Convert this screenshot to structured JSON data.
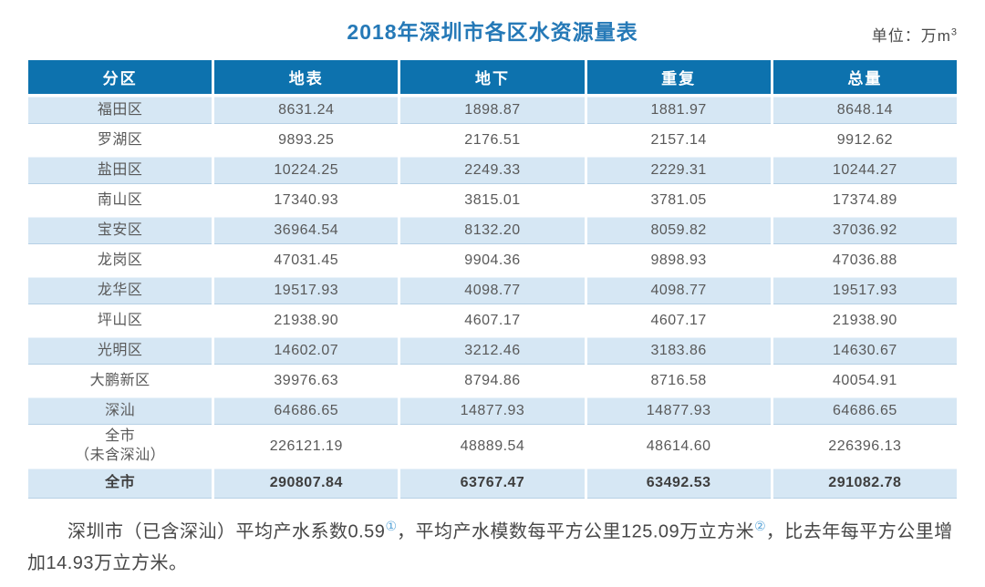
{
  "title": "2018年深圳市各区水资源量表",
  "unit": {
    "label": "单位：万m",
    "superscript": "3"
  },
  "colors": {
    "header_bg": "#0d72ae",
    "row_alt_bg": "#d6e7f4",
    "title_color": "#2579b7",
    "marker_color": "#56a3d8"
  },
  "table": {
    "columns": [
      "分区",
      "地表",
      "地下",
      "重复",
      "总量"
    ],
    "rows": [
      {
        "name": "福田区",
        "values": [
          "8631.24",
          "1898.87",
          "1881.97",
          "8648.14"
        ]
      },
      {
        "name": "罗湖区",
        "values": [
          "9893.25",
          "2176.51",
          "2157.14",
          "9912.62"
        ]
      },
      {
        "name": "盐田区",
        "values": [
          "10224.25",
          "2249.33",
          "2229.31",
          "10244.27"
        ]
      },
      {
        "name": "南山区",
        "values": [
          "17340.93",
          "3815.01",
          "3781.05",
          "17374.89"
        ]
      },
      {
        "name": "宝安区",
        "values": [
          "36964.54",
          "8132.20",
          "8059.82",
          "37036.92"
        ]
      },
      {
        "name": "龙岗区",
        "values": [
          "47031.45",
          "9904.36",
          "9898.93",
          "47036.88"
        ]
      },
      {
        "name": "龙华区",
        "values": [
          "19517.93",
          "4098.77",
          "4098.77",
          "19517.93"
        ]
      },
      {
        "name": "坪山区",
        "values": [
          "21938.90",
          "4607.17",
          "4607.17",
          "21938.90"
        ]
      },
      {
        "name": "光明区",
        "values": [
          "14602.07",
          "3212.46",
          "3183.86",
          "14630.67"
        ]
      },
      {
        "name": "大鹏新区",
        "values": [
          "39976.63",
          "8794.86",
          "8716.58",
          "40054.91"
        ]
      },
      {
        "name": "深汕",
        "values": [
          "64686.65",
          "14877.93",
          "14877.93",
          "64686.65"
        ]
      },
      {
        "name": "全市\n（未含深汕）",
        "values": [
          "226121.19",
          "48889.54",
          "48614.60",
          "226396.13"
        ]
      },
      {
        "name": "全市",
        "values": [
          "290807.84",
          "63767.47",
          "63492.53",
          "291082.78"
        ],
        "is_total": true
      }
    ]
  },
  "footnote": {
    "part1": "深圳市（已含深汕）平均产水系数0.59",
    "marker1": "①",
    "part2": "，平均产水模数每平方公里125.09万立方米",
    "marker2": "②",
    "part3": "，比去年每平方公里增加14.93万立方米。"
  }
}
